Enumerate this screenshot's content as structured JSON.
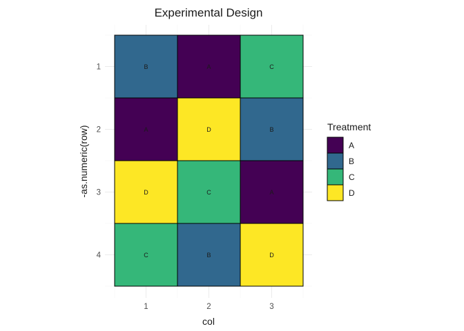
{
  "chart_data": {
    "type": "heatmap",
    "title": "Experimental Design",
    "xlabel": "col",
    "ylabel": "-as.numeric(row)",
    "x_ticks": [
      "1",
      "2",
      "3"
    ],
    "y_ticks": [
      "1",
      "2",
      "3",
      "4"
    ],
    "grid": true,
    "legend": {
      "title": "Treatment",
      "placement": "right",
      "entries": [
        {
          "label": "A",
          "color": "#440154"
        },
        {
          "label": "B",
          "color": "#31688E"
        },
        {
          "label": "C",
          "color": "#35B779"
        },
        {
          "label": "D",
          "color": "#FDE725"
        }
      ]
    },
    "cells": [
      {
        "row": 1,
        "col": 1,
        "treatment": "B"
      },
      {
        "row": 1,
        "col": 2,
        "treatment": "A"
      },
      {
        "row": 1,
        "col": 3,
        "treatment": "C"
      },
      {
        "row": 2,
        "col": 1,
        "treatment": "A"
      },
      {
        "row": 2,
        "col": 2,
        "treatment": "D"
      },
      {
        "row": 2,
        "col": 3,
        "treatment": "B"
      },
      {
        "row": 3,
        "col": 1,
        "treatment": "D"
      },
      {
        "row": 3,
        "col": 2,
        "treatment": "C"
      },
      {
        "row": 3,
        "col": 3,
        "treatment": "A"
      },
      {
        "row": 4,
        "col": 1,
        "treatment": "C"
      },
      {
        "row": 4,
        "col": 2,
        "treatment": "B"
      },
      {
        "row": 4,
        "col": 3,
        "treatment": "D"
      }
    ]
  }
}
